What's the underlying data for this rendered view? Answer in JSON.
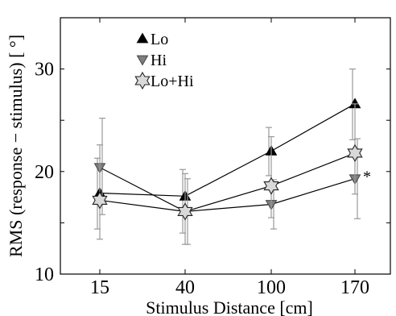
{
  "chart_data": {
    "type": "line",
    "xlabel": "Stimulus Distance [cm]",
    "ylabel": "RMS (response − stimulus) [ °]",
    "categories": [
      "15",
      "40",
      "100",
      "170"
    ],
    "ylim": [
      10,
      35
    ],
    "yticks": [
      10,
      20,
      30
    ],
    "grid": false,
    "legend_position": "top-left",
    "series": [
      {
        "name": "Lo",
        "marker": "triangle-up",
        "color": "#000000",
        "values": [
          17.9,
          17.6,
          22.0,
          26.6
        ],
        "err_low": [
          14.4,
          14.0,
          19.6,
          23.1
        ],
        "err_high": [
          21.3,
          20.2,
          24.3,
          30.0
        ]
      },
      {
        "name": "Hi",
        "marker": "triangle-down",
        "color": "#7f7f7f",
        "values": [
          20.4,
          16.1,
          16.8,
          19.3
        ],
        "err_low": [
          15.8,
          12.9,
          14.4,
          15.4
        ],
        "err_high": [
          25.2,
          19.3,
          19.2,
          23.2
        ]
      },
      {
        "name": "Lo+Hi",
        "marker": "hexagram",
        "color": "#d9d9d9",
        "values": [
          17.2,
          16.1,
          18.6,
          21.8
        ],
        "err_low": [
          13.4,
          12.9,
          15.5,
          17.8
        ],
        "err_high": [
          22.6,
          19.8,
          23.4,
          26.6
        ]
      }
    ],
    "annotations": [
      {
        "text": "*",
        "category": "170",
        "y": 20.1
      }
    ]
  }
}
